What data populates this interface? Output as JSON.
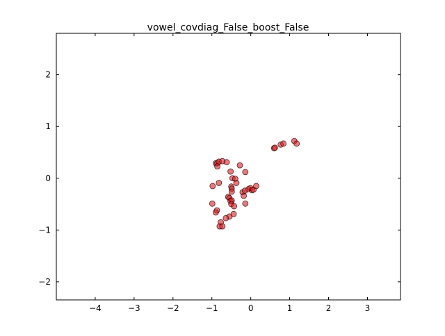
{
  "chart_data": {
    "type": "scatter",
    "title": "vowel_covdiag_False_boost_False",
    "xlabel": "",
    "ylabel": "",
    "xlim": [
      -5.0,
      3.85
    ],
    "ylim": [
      -2.35,
      2.8
    ],
    "xticks": [
      -4,
      -3,
      -2,
      -1,
      0,
      1,
      2,
      3
    ],
    "yticks": [
      -2,
      -1,
      0,
      1,
      2
    ],
    "xtick_labels": [
      "−4",
      "−3",
      "−2",
      "−1",
      "0",
      "1",
      "2",
      "3"
    ],
    "ytick_labels": [
      "−2",
      "−1",
      "0",
      "1",
      "2"
    ],
    "grid": false,
    "marker_color": "#e8191e",
    "marker_edge_color": "#000000",
    "marker_alpha": 0.6,
    "points": [
      {
        "x": -0.9,
        "y": 0.29
      },
      {
        "x": -0.86,
        "y": 0.29
      },
      {
        "x": -0.82,
        "y": 0.32
      },
      {
        "x": -0.73,
        "y": 0.33
      },
      {
        "x": -0.62,
        "y": 0.31
      },
      {
        "x": -0.86,
        "y": 0.23
      },
      {
        "x": -0.52,
        "y": 0.13
      },
      {
        "x": -0.28,
        "y": 0.25
      },
      {
        "x": -0.14,
        "y": 0.12
      },
      {
        "x": -0.47,
        "y": 0.0
      },
      {
        "x": -0.4,
        "y": -0.01
      },
      {
        "x": -0.37,
        "y": -0.09
      },
      {
        "x": -0.98,
        "y": -0.15
      },
      {
        "x": -0.82,
        "y": -0.09
      },
      {
        "x": -0.5,
        "y": -0.16
      },
      {
        "x": -0.49,
        "y": -0.2
      },
      {
        "x": -0.49,
        "y": -0.26
      },
      {
        "x": -0.21,
        "y": -0.27
      },
      {
        "x": -0.15,
        "y": -0.24
      },
      {
        "x": -0.06,
        "y": -0.21
      },
      {
        "x": -0.01,
        "y": -0.19
      },
      {
        "x": 0.03,
        "y": -0.23
      },
      {
        "x": 0.07,
        "y": -0.22
      },
      {
        "x": 0.14,
        "y": -0.15
      },
      {
        "x": -0.18,
        "y": -0.34
      },
      {
        "x": -0.58,
        "y": -0.36
      },
      {
        "x": -0.55,
        "y": -0.38
      },
      {
        "x": -0.52,
        "y": -0.44
      },
      {
        "x": -0.49,
        "y": -0.43
      },
      {
        "x": -0.5,
        "y": -0.5
      },
      {
        "x": -0.43,
        "y": -0.54
      },
      {
        "x": -0.14,
        "y": -0.49
      },
      {
        "x": -0.99,
        "y": -0.49
      },
      {
        "x": -0.87,
        "y": -0.62
      },
      {
        "x": -0.9,
        "y": -0.66
      },
      {
        "x": -0.44,
        "y": -0.69
      },
      {
        "x": -0.55,
        "y": -0.74
      },
      {
        "x": -0.64,
        "y": -0.77
      },
      {
        "x": -0.77,
        "y": -0.85
      },
      {
        "x": -0.8,
        "y": -0.93
      },
      {
        "x": -0.73,
        "y": -0.93
      },
      {
        "x": 0.6,
        "y": 0.58
      },
      {
        "x": 0.62,
        "y": 0.59
      },
      {
        "x": 0.77,
        "y": 0.65
      },
      {
        "x": 0.84,
        "y": 0.67
      },
      {
        "x": 1.12,
        "y": 0.72
      },
      {
        "x": 1.18,
        "y": 0.67
      }
    ]
  }
}
